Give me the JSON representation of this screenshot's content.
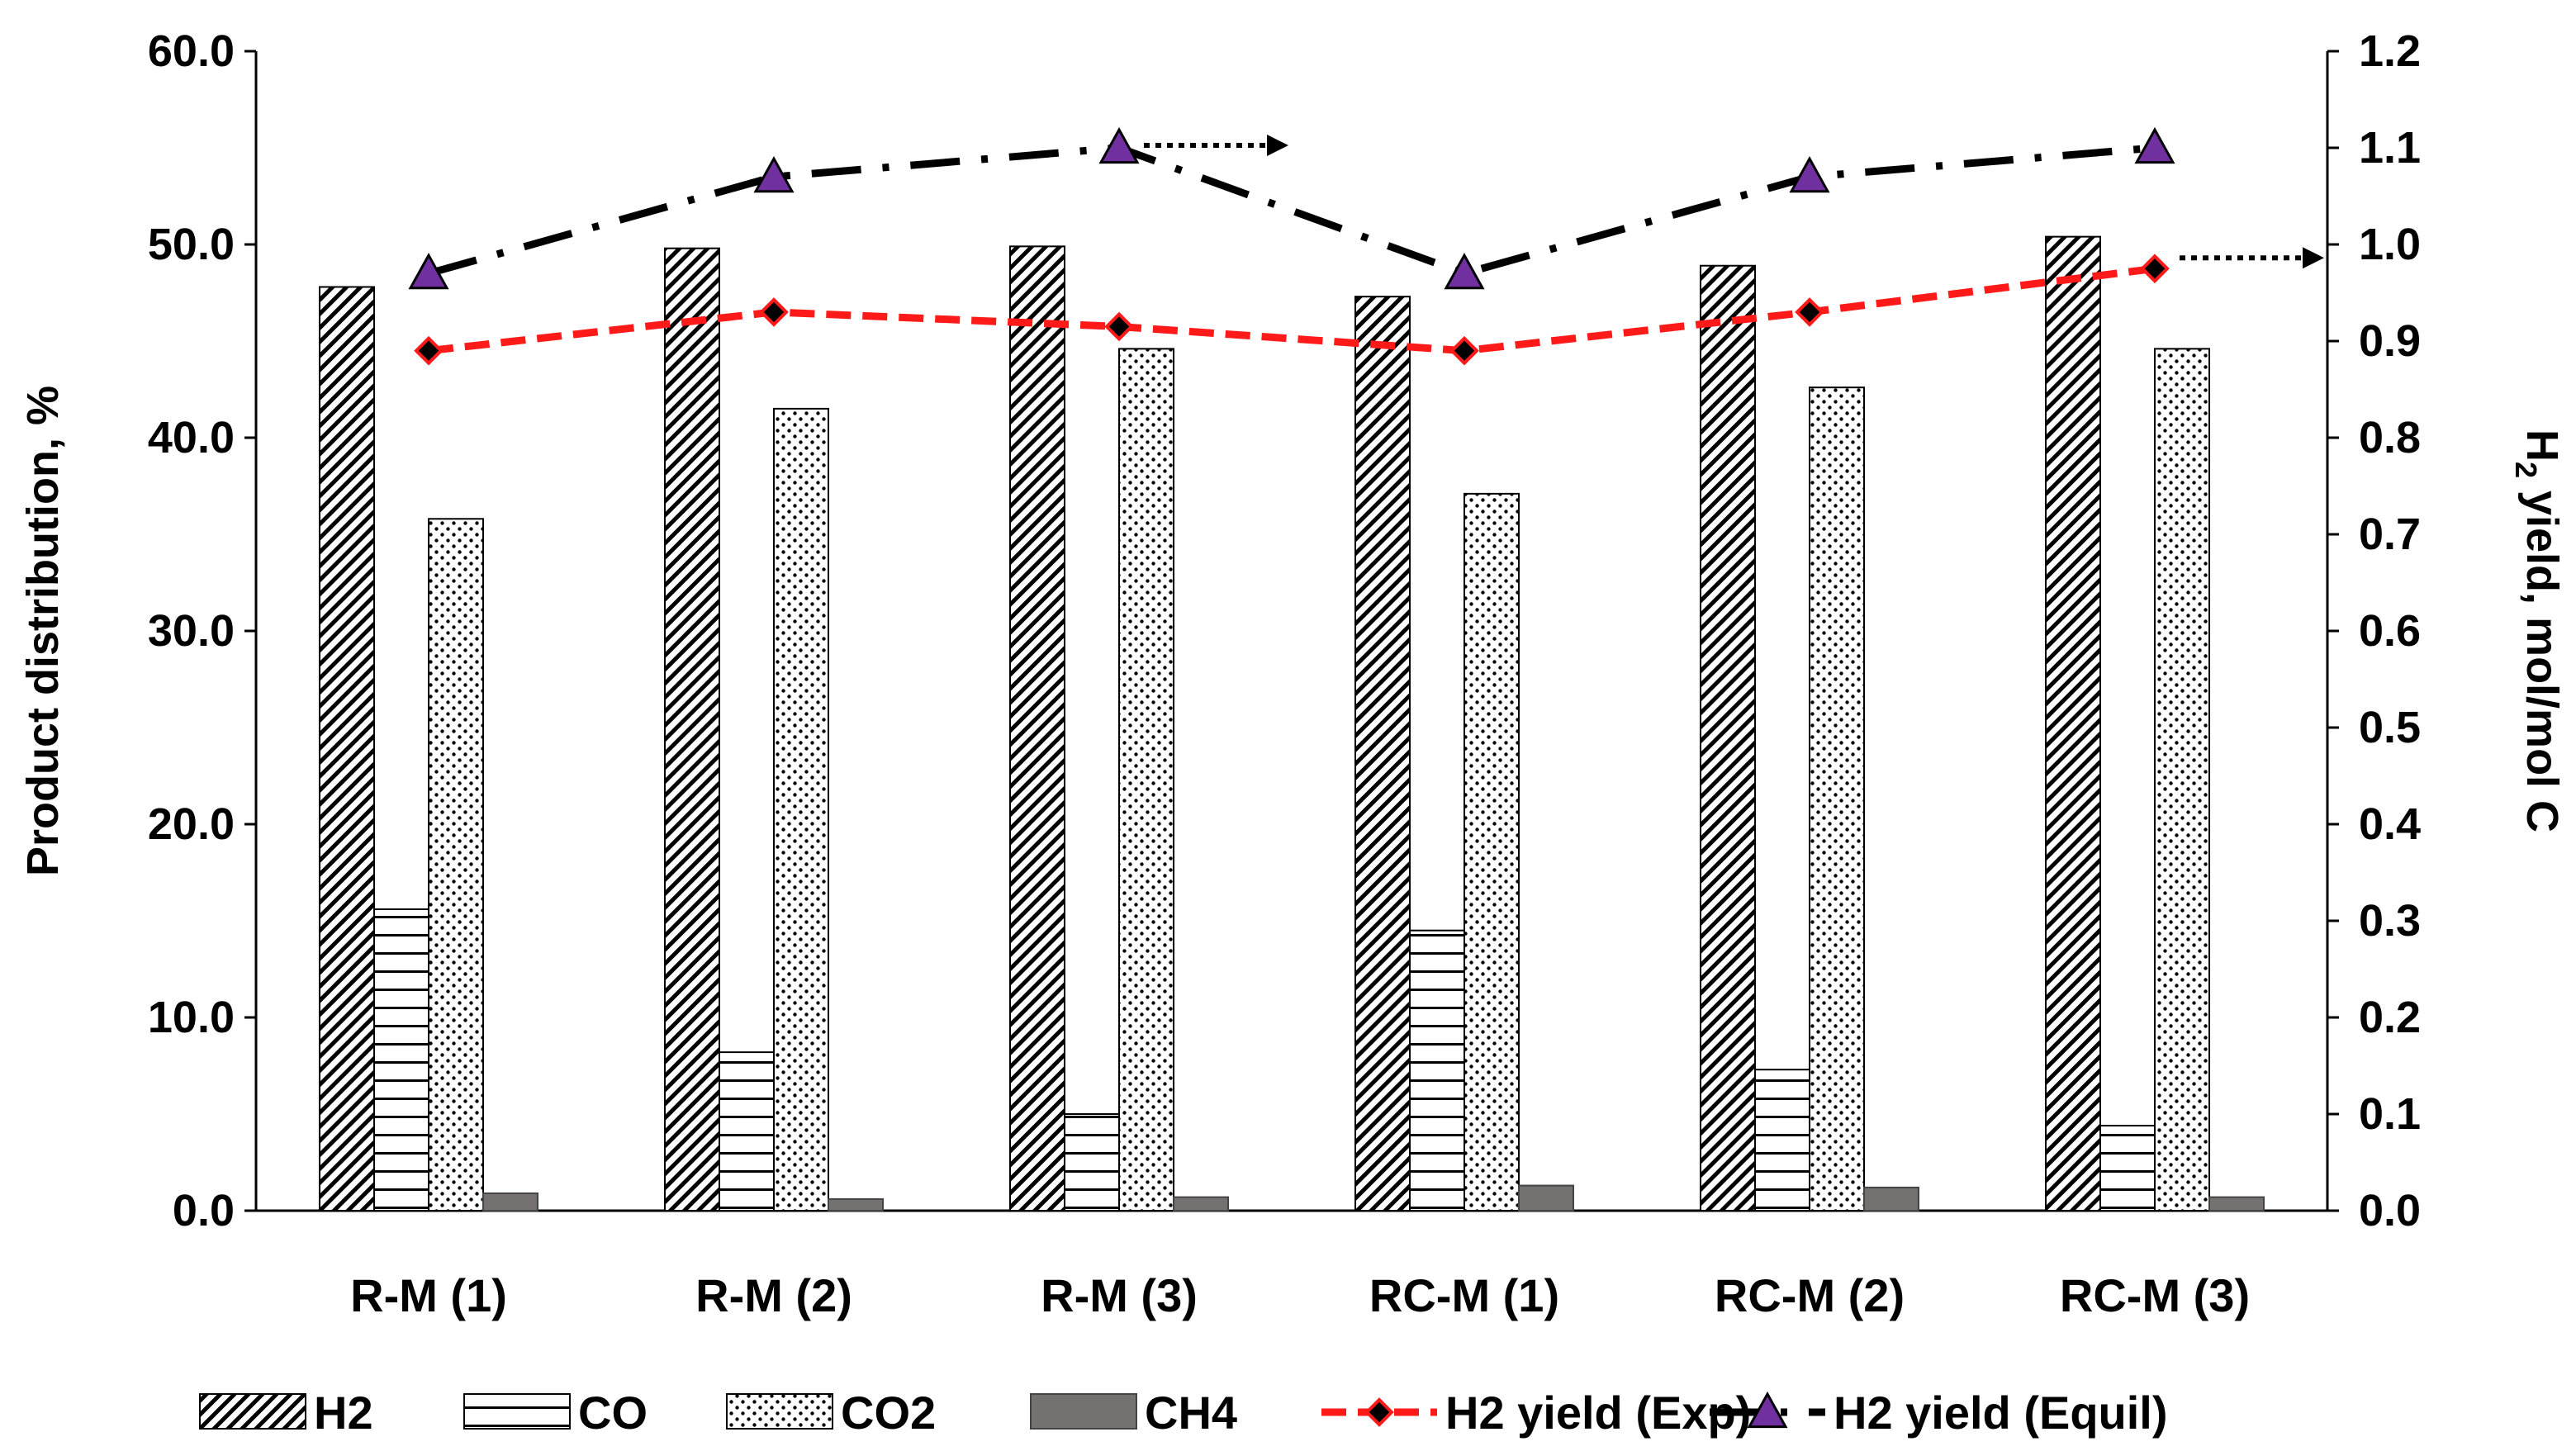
{
  "chart_data": {
    "type": "bar",
    "categories": [
      "R-M (1)",
      "R-M (2)",
      "R-M (3)",
      "RC-M (1)",
      "RC-M (2)",
      "RC-M (3)"
    ],
    "series": [
      {
        "name": "H2",
        "kind": "bar",
        "axis": "left",
        "pattern": "diagonal",
        "values": [
          47.8,
          49.8,
          49.9,
          47.3,
          48.9,
          50.4
        ]
      },
      {
        "name": "CO",
        "kind": "bar",
        "axis": "left",
        "pattern": "horizontal",
        "values": [
          15.6,
          8.2,
          5.0,
          14.5,
          7.3,
          4.4
        ]
      },
      {
        "name": "CO2",
        "kind": "bar",
        "axis": "left",
        "pattern": "dots",
        "values": [
          35.8,
          41.5,
          44.6,
          37.1,
          42.6,
          44.6
        ]
      },
      {
        "name": "CH4",
        "kind": "bar",
        "axis": "left",
        "pattern": "solid-gray",
        "values": [
          0.9,
          0.6,
          0.7,
          1.3,
          1.2,
          0.7
        ]
      },
      {
        "name": "H2 yield (Exp)",
        "kind": "line",
        "axis": "right",
        "color": "#ff1a1a",
        "marker": "diamond",
        "values": [
          0.89,
          0.93,
          0.915,
          0.89,
          0.93,
          0.975
        ]
      },
      {
        "name": "H2 yield (Equil)",
        "kind": "line",
        "axis": "right",
        "color": "#000000",
        "marker": "triangle",
        "marker_color": "#7030a0",
        "values": [
          0.97,
          1.07,
          1.1,
          0.97,
          1.07,
          1.1
        ]
      }
    ],
    "left_axis": {
      "title": "Product distribution, %",
      "min": 0,
      "max": 60,
      "ticks": [
        "0.0",
        "10.0",
        "20.0",
        "30.0",
        "40.0",
        "50.0",
        "60.0"
      ]
    },
    "right_axis": {
      "title_main": "H",
      "title_sub": "2",
      "title_rest": " yield, mol/mol C",
      "min": 0,
      "max": 1.2,
      "ticks": [
        "0.0",
        "0.1",
        "0.2",
        "0.3",
        "0.4",
        "0.5",
        "0.6",
        "0.7",
        "0.8",
        "0.9",
        "1.0",
        "1.1",
        "1.2"
      ]
    },
    "legend": [
      "H2",
      "CO",
      "CO2",
      "CH4",
      "H2 yield (Exp)",
      "H2 yield (Equil)"
    ],
    "legend_position": "bottom",
    "annotations": [
      {
        "kind": "dotted-arrow",
        "points_to": "right",
        "series": "H2 yield (Equil)",
        "category": "R-M (3)"
      },
      {
        "kind": "dotted-arrow",
        "points_to": "right",
        "series": "H2 yield (Exp)",
        "category": "RC-M (3)"
      }
    ]
  }
}
